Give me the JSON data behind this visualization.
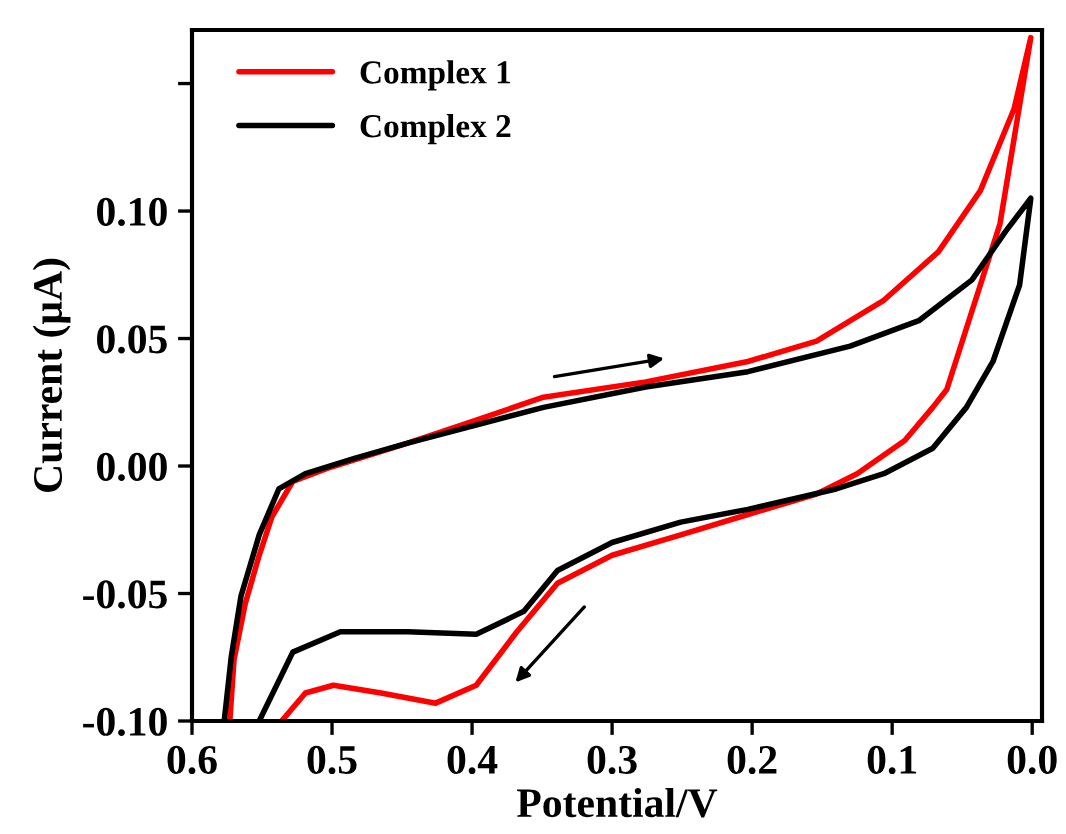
{
  "chart_data": {
    "type": "line",
    "xlabel": "Potential/V",
    "ylabel": "Current (μA)",
    "xlim": [
      0.6,
      -0.007
    ],
    "xticks": [
      {
        "value": 0.6,
        "label": "0.6"
      },
      {
        "value": 0.5,
        "label": "0.5"
      },
      {
        "value": 0.4,
        "label": "0.4"
      },
      {
        "value": 0.3,
        "label": "0.3"
      },
      {
        "value": 0.2,
        "label": "0.2"
      },
      {
        "value": 0.1,
        "label": "0.1"
      },
      {
        "value": 0.0,
        "label": "0.0"
      }
    ],
    "ylim": [
      -0.1,
      0.171
    ],
    "yticks": [
      {
        "value": -0.1,
        "label": "-0.10"
      },
      {
        "value": -0.05,
        "label": "-0.05"
      },
      {
        "value": 0.0,
        "label": "0.00"
      },
      {
        "value": 0.05,
        "label": "0.05"
      },
      {
        "value": 0.1,
        "label": "0.10"
      },
      {
        "value": 0.15,
        "label": null
      }
    ],
    "legend": "top left",
    "grid": false,
    "series": [
      {
        "name": "Complex 1",
        "color": "#ff0000",
        "x": [
          0.573,
          0.57,
          0.562,
          0.552,
          0.543,
          0.528,
          0.504,
          0.446,
          0.397,
          0.349,
          0.276,
          0.203,
          0.154,
          0.106,
          0.067,
          0.037,
          0.013,
          0.001,
          0.023,
          0.061,
          0.071,
          0.091,
          0.125,
          0.154,
          0.203,
          0.251,
          0.3,
          0.339,
          0.368,
          0.397,
          0.426,
          0.465,
          0.499,
          0.519,
          0.536
        ],
        "values": [
          -0.1,
          -0.076,
          -0.054,
          -0.035,
          -0.02,
          -0.006,
          -0.001,
          0.009,
          0.018,
          0.027,
          0.033,
          0.041,
          0.049,
          0.065,
          0.084,
          0.108,
          0.14,
          0.168,
          0.095,
          0.03,
          0.023,
          0.01,
          -0.003,
          -0.011,
          -0.019,
          -0.027,
          -0.035,
          -0.046,
          -0.065,
          -0.086,
          -0.093,
          -0.089,
          -0.086,
          -0.089,
          -0.1
        ]
      },
      {
        "name": "Complex 2",
        "color": "#000000",
        "x": [
          0.577,
          0.572,
          0.565,
          0.552,
          0.538,
          0.519,
          0.484,
          0.446,
          0.349,
          0.276,
          0.203,
          0.13,
          0.081,
          0.043,
          0.019,
          0.001,
          0.009,
          0.028,
          0.047,
          0.071,
          0.106,
          0.14,
          0.203,
          0.251,
          0.3,
          0.339,
          0.363,
          0.397,
          0.446,
          0.494,
          0.528,
          0.552
        ],
        "values": [
          -0.1,
          -0.075,
          -0.051,
          -0.027,
          -0.009,
          -0.003,
          0.003,
          0.009,
          0.023,
          0.031,
          0.037,
          0.047,
          0.057,
          0.073,
          0.092,
          0.105,
          0.071,
          0.041,
          0.023,
          0.007,
          -0.003,
          -0.009,
          -0.017,
          -0.022,
          -0.03,
          -0.041,
          -0.057,
          -0.066,
          -0.065,
          -0.065,
          -0.073,
          -0.1
        ]
      }
    ]
  }
}
